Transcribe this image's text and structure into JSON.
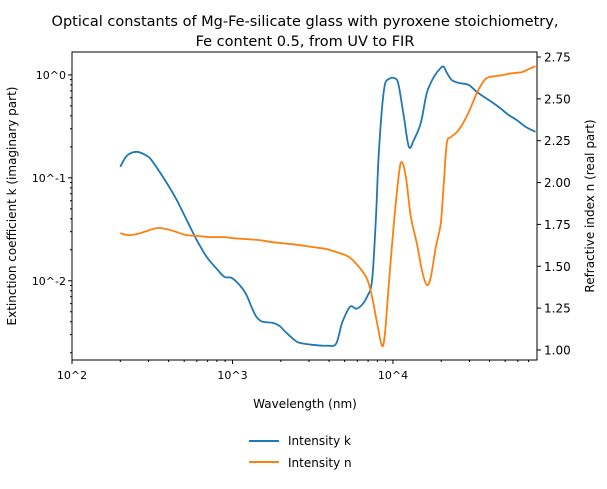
{
  "chart_data": {
    "type": "line",
    "title": [
      "Optical constants of Mg-Fe-silicate glass with pyroxene stoichiometry,",
      "Fe content 0.5, from UV to FIR"
    ],
    "xlabel": "Wavelength (nm)",
    "ylabel_left": "Extinction coefficient k (imaginary part)",
    "ylabel_right": "Refractive index n (real part)",
    "xscale": "log",
    "yscale_left": "log",
    "yscale_right": "linear",
    "xlim": [
      100,
      79000
    ],
    "ylim_left": [
      0.0017,
      1.67
    ],
    "ylim_right": [
      0.94,
      2.78
    ],
    "xtick_values": [
      100,
      1000,
      10000
    ],
    "xtick_labels": [
      "10^2",
      "10^3",
      "10^4"
    ],
    "ytick_left_values": [
      0.01,
      0.1,
      1
    ],
    "ytick_left_labels": [
      "10^-2",
      "10^-1",
      "10^0"
    ],
    "ytick_right_values": [
      1.0,
      1.25,
      1.5,
      1.75,
      2.0,
      2.25,
      2.5,
      2.75
    ],
    "ytick_right_labels": [
      "1.00",
      "1.25",
      "1.50",
      "1.75",
      "2.00",
      "2.25",
      "2.50",
      "2.75"
    ],
    "grid": false,
    "legend_placement": "below-center",
    "series": [
      {
        "name": "Intensity k",
        "axis": "left",
        "color": "#1f77b4",
        "x": [
          200,
          220,
          253,
          292,
          319,
          389,
          449,
          518,
          598,
          690,
          796,
          892,
          986,
          1105,
          1222,
          1312,
          1410,
          1536,
          1772,
          1958,
          2164,
          2427,
          2608,
          3140,
          3890,
          4424,
          4822,
          5408,
          5894,
          6415,
          6900,
          7413,
          7836,
          8183,
          8790,
          9440,
          10440,
          10900,
          11700,
          12570,
          13500,
          14920,
          16260,
          17990,
          19860,
          20750,
          21640,
          23230,
          25700,
          29660,
          33260,
          39450,
          45500,
          52500,
          58900,
          66970,
          77290
        ],
        "y": [
          0.128,
          0.164,
          0.179,
          0.164,
          0.143,
          0.0894,
          0.0611,
          0.0391,
          0.025,
          0.0171,
          0.0131,
          0.0109,
          0.0107,
          0.00914,
          0.00731,
          0.0056,
          0.00447,
          0.004,
          0.00391,
          0.00366,
          0.00313,
          0.00267,
          0.0025,
          0.00239,
          0.00234,
          0.00245,
          0.00391,
          0.0056,
          0.00535,
          0.00585,
          0.007,
          0.0102,
          0.0418,
          0.187,
          0.715,
          0.915,
          0.915,
          0.765,
          0.391,
          0.2,
          0.234,
          0.342,
          0.668,
          0.956,
          1.17,
          1.2,
          1.05,
          0.894,
          0.836,
          0.8,
          0.684,
          0.572,
          0.489,
          0.409,
          0.366,
          0.313,
          0.28
        ]
      },
      {
        "name": "Intensity n",
        "axis": "right",
        "color": "#ff7f0e",
        "x": [
          200,
          223,
          253,
          292,
          337,
          389,
          449,
          518,
          624,
          720,
          892,
          1000,
          1222,
          1472,
          1772,
          2358,
          3140,
          3837,
          4621,
          5333,
          6150,
          6900,
          7413,
          7960,
          8544,
          8917,
          9440,
          10140,
          10900,
          11370,
          12040,
          12940,
          14090,
          15140,
          16260,
          17220,
          18500,
          19860,
          20750,
          21640,
          22910,
          24990,
          26850,
          29660,
          33260,
          36730,
          39450,
          47520,
          54830,
          63250,
          69940,
          77290
        ],
        "y": [
          1.698,
          1.686,
          1.692,
          1.71,
          1.728,
          1.722,
          1.704,
          1.686,
          1.68,
          1.674,
          1.674,
          1.668,
          1.662,
          1.656,
          1.644,
          1.632,
          1.615,
          1.603,
          1.579,
          1.555,
          1.495,
          1.424,
          1.316,
          1.161,
          1.024,
          1.101,
          1.4,
          1.758,
          2.056,
          2.122,
          2.032,
          1.794,
          1.638,
          1.477,
          1.388,
          1.436,
          1.615,
          1.758,
          1.996,
          2.235,
          2.271,
          2.301,
          2.342,
          2.42,
          2.533,
          2.605,
          2.629,
          2.641,
          2.653,
          2.659,
          2.677,
          2.695
        ]
      }
    ]
  }
}
